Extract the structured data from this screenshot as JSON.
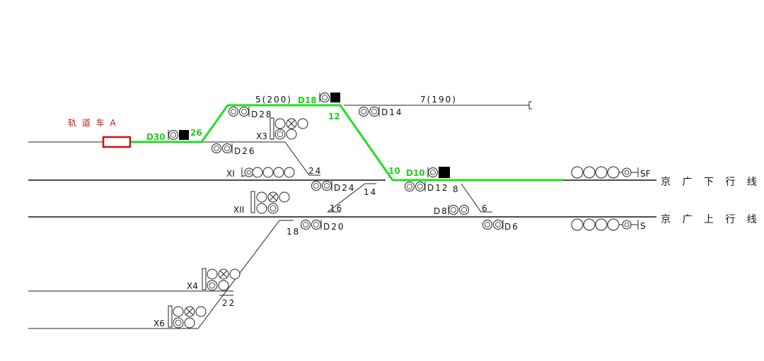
{
  "colors": {
    "route": "#22dd22",
    "vehicle": "#cc1111",
    "track": "#222222",
    "signal_active": "#000000"
  },
  "vehicle": {
    "label": "轨 道 车 A"
  },
  "lines": {
    "down_main": "京 广 下 行 线",
    "up_main": "京 广 上 行 线"
  },
  "track_labels": {
    "t5": "5(200)",
    "t7": "7(190)"
  },
  "switches": {
    "s26": "26",
    "s12": "12",
    "s10": "10",
    "s24": "24",
    "s14": "14",
    "s16": "16",
    "s18": "18",
    "s8": "8",
    "s6": "6",
    "s22": "22"
  },
  "shunting_signals": {
    "D30": "D30",
    "D28": "D28",
    "D26": "D26",
    "D18": "D18",
    "D14": "D14",
    "D24": "D24",
    "D10": "D10",
    "D12": "D12",
    "D8": "D8",
    "D6": "D6",
    "D20": "D20"
  },
  "departure_signals": {
    "X3": "X3",
    "XI": "XI",
    "XII": "XII",
    "X4": "X4",
    "X6": "X6"
  },
  "entry_signals": {
    "SF": "SF",
    "S": "S"
  },
  "route_active": [
    "D30",
    "26",
    "5(200)",
    "D18",
    "12",
    "10",
    "D10"
  ]
}
